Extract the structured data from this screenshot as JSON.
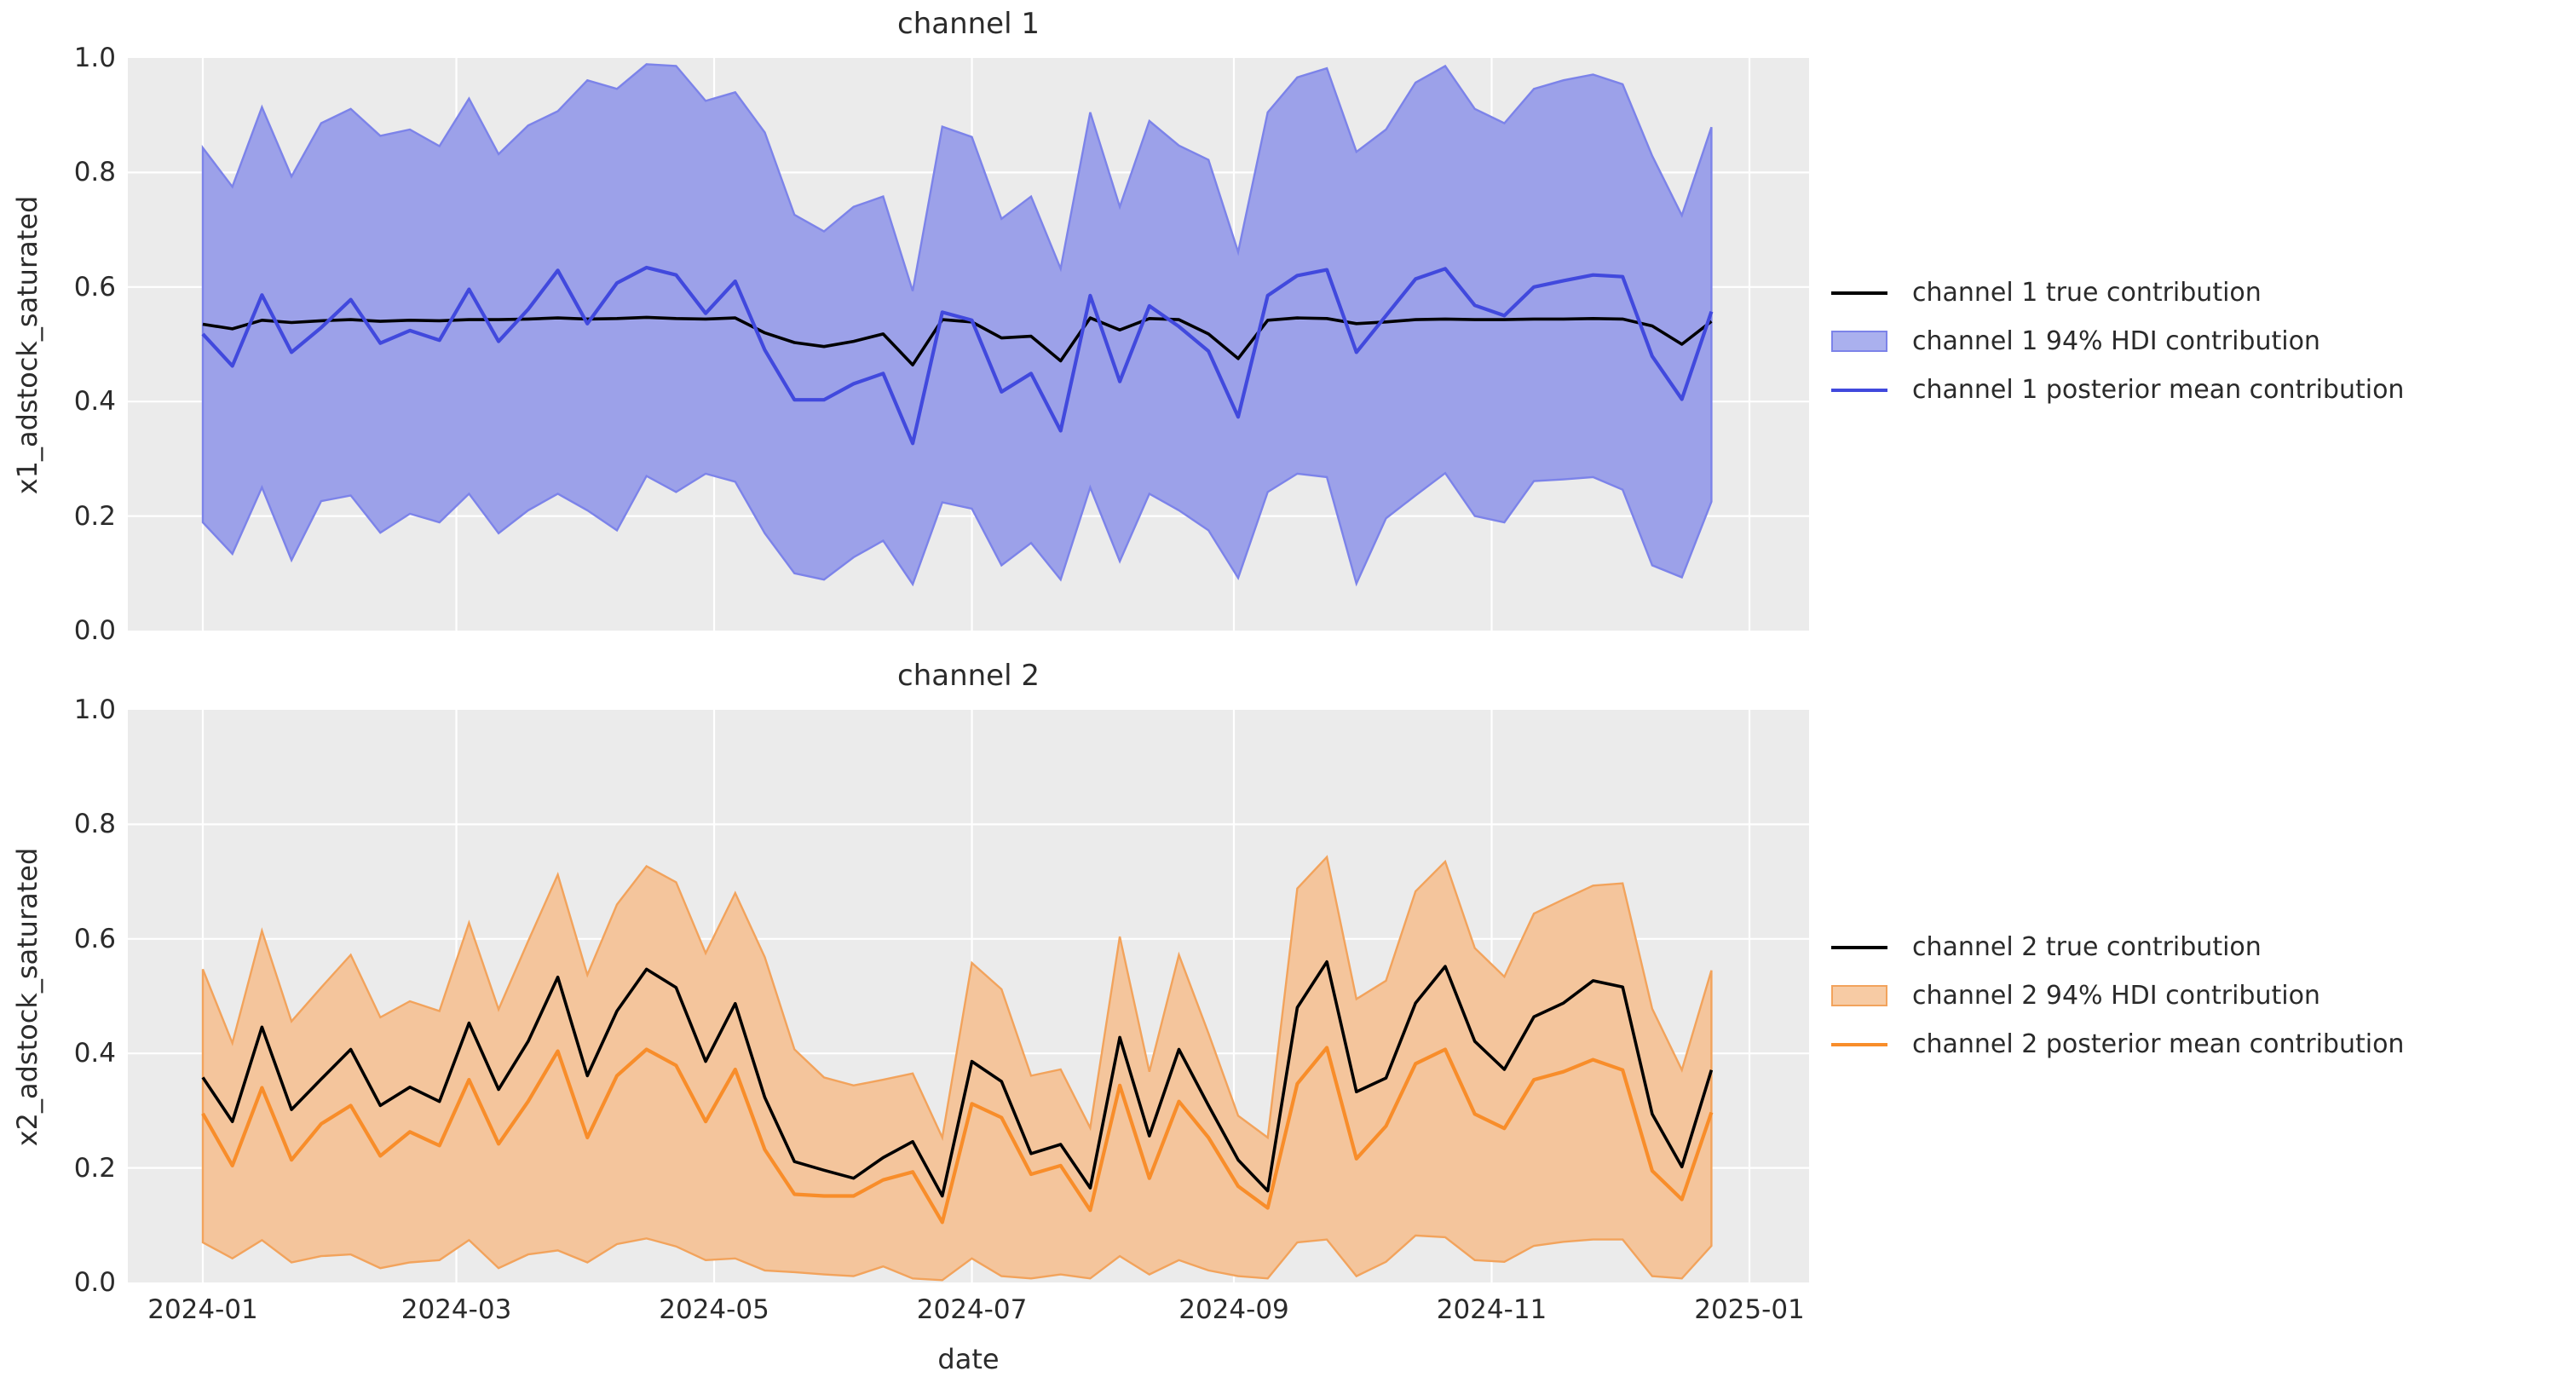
{
  "figure": {
    "background": "#ffffff",
    "axes_background": "#ebebeb",
    "grid_color": "#ffffff",
    "text_color": "#2b2b2b"
  },
  "chart_data": [
    {
      "type": "line",
      "title": "channel 1",
      "xlabel": "",
      "ylabel": "x1_adstock_saturated",
      "ylim": [
        0,
        1
      ],
      "grid": true,
      "legend_position": "right of axes",
      "x_tick_labels": [
        "2024-01",
        "2024-03",
        "2024-05",
        "2024-07",
        "2024-09",
        "2024-11",
        "2025-01"
      ],
      "y_tick_labels": [
        "0.0",
        "0.2",
        "0.4",
        "0.6",
        "0.8",
        "1.0"
      ],
      "x": [
        "2024-01-01",
        "2024-01-08",
        "2024-01-15",
        "2024-01-22",
        "2024-01-29",
        "2024-02-05",
        "2024-02-12",
        "2024-02-19",
        "2024-02-26",
        "2024-03-04",
        "2024-03-11",
        "2024-03-18",
        "2024-03-25",
        "2024-04-01",
        "2024-04-08",
        "2024-04-15",
        "2024-04-22",
        "2024-04-29",
        "2024-05-06",
        "2024-05-13",
        "2024-05-20",
        "2024-05-27",
        "2024-06-03",
        "2024-06-10",
        "2024-06-17",
        "2024-06-24",
        "2024-07-01",
        "2024-07-08",
        "2024-07-15",
        "2024-07-22",
        "2024-07-29",
        "2024-08-05",
        "2024-08-12",
        "2024-08-19",
        "2024-08-26",
        "2024-09-02",
        "2024-09-09",
        "2024-09-16",
        "2024-09-23",
        "2024-09-30",
        "2024-10-07",
        "2024-10-14",
        "2024-10-21",
        "2024-10-28",
        "2024-11-04",
        "2024-11-11",
        "2024-11-18",
        "2024-11-25",
        "2024-12-02",
        "2024-12-09",
        "2024-12-16",
        "2024-12-23"
      ],
      "series": [
        {
          "name": "channel 1 true contribution",
          "role": "true_line",
          "color": "#000000",
          "values": [
            0.535,
            0.527,
            0.542,
            0.538,
            0.541,
            0.543,
            0.54,
            0.542,
            0.541,
            0.543,
            0.543,
            0.544,
            0.546,
            0.544,
            0.545,
            0.547,
            0.545,
            0.544,
            0.546,
            0.52,
            0.503,
            0.496,
            0.505,
            0.518,
            0.464,
            0.543,
            0.539,
            0.511,
            0.514,
            0.471,
            0.546,
            0.525,
            0.545,
            0.543,
            0.518,
            0.475,
            0.542,
            0.546,
            0.545,
            0.536,
            0.539,
            0.543,
            0.544,
            0.543,
            0.543,
            0.544,
            0.544,
            0.545,
            0.544,
            0.532,
            0.5,
            0.54
          ]
        },
        {
          "name": "channel 1 94% HDI contribution",
          "role": "hdi_band",
          "fill": "#9ca1e9",
          "edge": "#7c83e9",
          "legend_patch_fill": "#aab0ee",
          "upper": [
            0.843,
            0.775,
            0.914,
            0.793,
            0.886,
            0.911,
            0.864,
            0.875,
            0.846,
            0.929,
            0.832,
            0.882,
            0.907,
            0.961,
            0.946,
            0.989,
            0.986,
            0.925,
            0.94,
            0.87,
            0.726,
            0.697,
            0.74,
            0.758,
            0.593,
            0.88,
            0.862,
            0.719,
            0.758,
            0.632,
            0.905,
            0.74,
            0.89,
            0.847,
            0.822,
            0.661,
            0.905,
            0.966,
            0.982,
            0.836,
            0.875,
            0.957,
            0.986,
            0.911,
            0.886,
            0.946,
            0.961,
            0.971,
            0.954,
            0.829,
            0.725,
            0.879
          ],
          "lower": [
            0.189,
            0.134,
            0.25,
            0.123,
            0.226,
            0.236,
            0.171,
            0.204,
            0.189,
            0.239,
            0.17,
            0.21,
            0.239,
            0.21,
            0.175,
            0.27,
            0.242,
            0.274,
            0.26,
            0.17,
            0.1,
            0.089,
            0.128,
            0.157,
            0.081,
            0.224,
            0.213,
            0.114,
            0.153,
            0.089,
            0.25,
            0.121,
            0.239,
            0.21,
            0.175,
            0.092,
            0.242,
            0.274,
            0.268,
            0.082,
            0.196,
            0.236,
            0.275,
            0.2,
            0.189,
            0.261,
            0.264,
            0.268,
            0.246,
            0.114,
            0.093,
            0.225
          ]
        },
        {
          "name": "channel 1 posterior mean contribution",
          "role": "mean_line",
          "color": "#4149dd",
          "values": [
            0.518,
            0.462,
            0.586,
            0.486,
            0.529,
            0.578,
            0.502,
            0.524,
            0.507,
            0.596,
            0.505,
            0.561,
            0.629,
            0.536,
            0.607,
            0.634,
            0.621,
            0.554,
            0.61,
            0.49,
            0.403,
            0.403,
            0.431,
            0.449,
            0.327,
            0.556,
            0.542,
            0.417,
            0.449,
            0.349,
            0.585,
            0.435,
            0.567,
            0.531,
            0.488,
            0.373,
            0.585,
            0.62,
            0.63,
            0.486,
            0.55,
            0.614,
            0.632,
            0.568,
            0.55,
            0.6,
            0.611,
            0.621,
            0.618,
            0.479,
            0.404,
            0.557
          ]
        }
      ]
    },
    {
      "type": "line",
      "title": "channel 2",
      "xlabel": "date",
      "ylabel": "x2_adstock_saturated",
      "ylim": [
        0,
        1
      ],
      "grid": true,
      "legend_position": "right of axes",
      "x_tick_labels": [
        "2024-01",
        "2024-03",
        "2024-05",
        "2024-07",
        "2024-09",
        "2024-11",
        "2025-01"
      ],
      "y_tick_labels": [
        "0.0",
        "0.2",
        "0.4",
        "0.6",
        "0.8",
        "1.0"
      ],
      "x": [
        "2024-01-01",
        "2024-01-08",
        "2024-01-15",
        "2024-01-22",
        "2024-01-29",
        "2024-02-05",
        "2024-02-12",
        "2024-02-19",
        "2024-02-26",
        "2024-03-04",
        "2024-03-11",
        "2024-03-18",
        "2024-03-25",
        "2024-04-01",
        "2024-04-08",
        "2024-04-15",
        "2024-04-22",
        "2024-04-29",
        "2024-05-06",
        "2024-05-13",
        "2024-05-20",
        "2024-05-27",
        "2024-06-03",
        "2024-06-10",
        "2024-06-17",
        "2024-06-24",
        "2024-07-01",
        "2024-07-08",
        "2024-07-15",
        "2024-07-22",
        "2024-07-29",
        "2024-08-05",
        "2024-08-12",
        "2024-08-19",
        "2024-08-26",
        "2024-09-02",
        "2024-09-09",
        "2024-09-16",
        "2024-09-23",
        "2024-09-30",
        "2024-10-07",
        "2024-10-14",
        "2024-10-21",
        "2024-10-28",
        "2024-11-04",
        "2024-11-11",
        "2024-11-18",
        "2024-11-25",
        "2024-12-02",
        "2024-12-09",
        "2024-12-16",
        "2024-12-23"
      ],
      "series": [
        {
          "name": "channel 2 true contribution",
          "role": "true_line",
          "color": "#000000",
          "values": [
            0.358,
            0.281,
            0.446,
            0.302,
            0.355,
            0.407,
            0.309,
            0.341,
            0.316,
            0.453,
            0.337,
            0.421,
            0.533,
            0.361,
            0.474,
            0.547,
            0.515,
            0.386,
            0.487,
            0.323,
            0.211,
            0.196,
            0.182,
            0.218,
            0.246,
            0.151,
            0.386,
            0.351,
            0.225,
            0.241,
            0.165,
            0.428,
            0.256,
            0.407,
            0.309,
            0.214,
            0.16,
            0.48,
            0.56,
            0.333,
            0.357,
            0.488,
            0.552,
            0.421,
            0.372,
            0.464,
            0.488,
            0.527,
            0.516,
            0.294,
            0.202,
            0.371
          ]
        },
        {
          "name": "channel 2 94% HDI contribution",
          "role": "hdi_band",
          "fill": "#f4c59c",
          "edge": "#f2a35c",
          "legend_patch_fill": "#f7cba4",
          "upper": [
            0.547,
            0.418,
            0.614,
            0.456,
            0.515,
            0.572,
            0.463,
            0.491,
            0.474,
            0.628,
            0.477,
            0.596,
            0.712,
            0.537,
            0.66,
            0.727,
            0.699,
            0.575,
            0.68,
            0.568,
            0.407,
            0.358,
            0.344,
            0.354,
            0.365,
            0.253,
            0.558,
            0.512,
            0.361,
            0.372,
            0.27,
            0.604,
            0.368,
            0.572,
            0.435,
            0.291,
            0.253,
            0.688,
            0.743,
            0.495,
            0.527,
            0.683,
            0.735,
            0.584,
            0.534,
            0.644,
            0.669,
            0.693,
            0.697,
            0.478,
            0.371,
            0.545
          ],
          "lower": [
            0.07,
            0.042,
            0.074,
            0.035,
            0.046,
            0.049,
            0.025,
            0.035,
            0.039,
            0.074,
            0.025,
            0.049,
            0.056,
            0.035,
            0.067,
            0.077,
            0.063,
            0.039,
            0.042,
            0.021,
            0.018,
            0.014,
            0.011,
            0.028,
            0.007,
            0.004,
            0.042,
            0.011,
            0.007,
            0.014,
            0.007,
            0.046,
            0.014,
            0.039,
            0.021,
            0.011,
            0.007,
            0.07,
            0.075,
            0.011,
            0.036,
            0.082,
            0.079,
            0.039,
            0.036,
            0.064,
            0.071,
            0.075,
            0.075,
            0.011,
            0.007,
            0.064
          ]
        },
        {
          "name": "channel 2 posterior mean contribution",
          "role": "mean_line",
          "color": "#f88d2a",
          "values": [
            0.295,
            0.204,
            0.34,
            0.214,
            0.277,
            0.309,
            0.221,
            0.263,
            0.239,
            0.354,
            0.242,
            0.316,
            0.404,
            0.253,
            0.361,
            0.407,
            0.379,
            0.281,
            0.372,
            0.232,
            0.154,
            0.151,
            0.151,
            0.179,
            0.193,
            0.105,
            0.312,
            0.288,
            0.189,
            0.204,
            0.126,
            0.344,
            0.182,
            0.316,
            0.253,
            0.168,
            0.13,
            0.347,
            0.41,
            0.216,
            0.273,
            0.382,
            0.407,
            0.294,
            0.269,
            0.354,
            0.368,
            0.389,
            0.371,
            0.195,
            0.145,
            0.297
          ]
        }
      ]
    }
  ]
}
